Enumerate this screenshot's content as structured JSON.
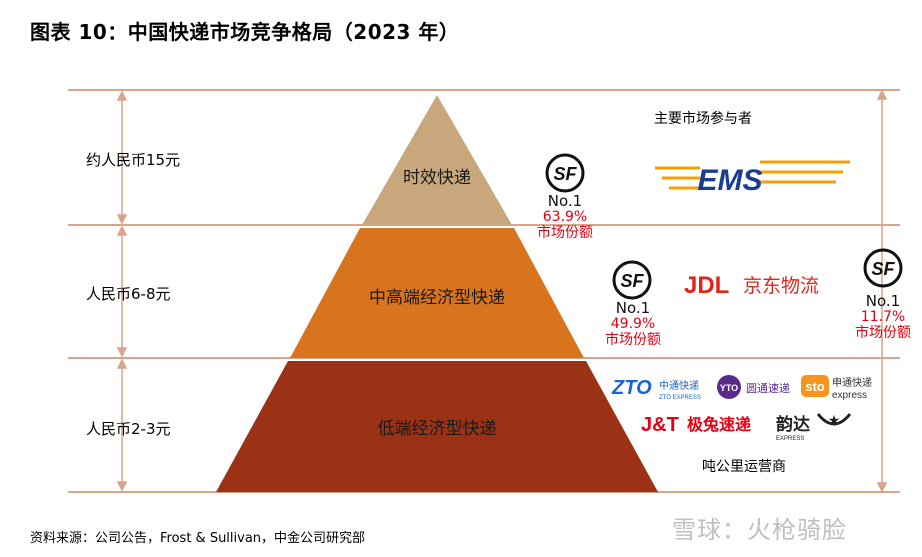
{
  "title": "图表 10：中国快递市场竞争格局（2023 年）",
  "tiers": [
    {
      "price": "约人民币15元",
      "name": "时效快递",
      "color": "#c9a77c"
    },
    {
      "price": "人民币6-8元",
      "name": "中高端经济型快递",
      "color": "#d9741e"
    },
    {
      "price": "人民币2-3元",
      "name": "低端经济型快递",
      "color": "#9b3216"
    }
  ],
  "participants_label": "主要市场参与者",
  "sf_shares": [
    {
      "rank": "No.1",
      "share": "63.9%",
      "label": "市场份额"
    },
    {
      "rank": "No.1",
      "share": "49.9%",
      "label": "市场份额"
    },
    {
      "rank": "No.1",
      "share": "11.7%",
      "label": "市场份额"
    }
  ],
  "logos": {
    "sf": "SF",
    "ems": "EMS",
    "jd": "JDL",
    "jd_cn": "京东物流",
    "zto": "ZTO",
    "zto_cn": "中通快递",
    "zto_en": "ZTO EXPRESS",
    "yto": "YTO",
    "yto_cn": "圆通速递",
    "sto": "sto",
    "sto_cn": "申通快递",
    "sto_en": "express",
    "jt": "J&T",
    "jt_cn": "极兔速递",
    "yd": "韵达",
    "yd_en": "EXPRESS"
  },
  "operators_label": "吨公里运营商",
  "source": "资料来源：公司公告，Frost & Sullivan，中金公司研究部",
  "watermark": "雪球：火枪骑脸"
}
